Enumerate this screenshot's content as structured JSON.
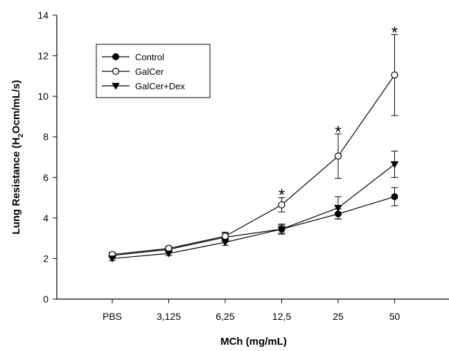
{
  "chart_data": {
    "type": "line",
    "title": "",
    "xlabel": "MCh (mg/mL)",
    "ylabel": "Lung Resistance (H",
    "ylabel_subscript": "2",
    "ylabel_suffix": "Ocm/mL/s)",
    "categories": [
      "PBS",
      "3,125",
      "6,25",
      "12,5",
      "25",
      "50"
    ],
    "ylim": [
      0,
      14
    ],
    "yticks": [
      0,
      2,
      4,
      6,
      8,
      10,
      12,
      14
    ],
    "ytick_labels": [
      "0",
      "2",
      "4",
      "6",
      "8",
      "10",
      "12",
      "14"
    ],
    "grid": false,
    "legend_position": "top-left",
    "series": [
      {
        "name": "Control",
        "marker": "filled-circle",
        "color": "#000000",
        "values": [
          2.15,
          2.45,
          3.05,
          3.45,
          4.2,
          5.05
        ],
        "errors": [
          0.1,
          0.1,
          0.2,
          0.2,
          0.25,
          0.45
        ]
      },
      {
        "name": "GalCer",
        "marker": "open-circle",
        "color": "#000000",
        "values": [
          2.2,
          2.5,
          3.1,
          4.65,
          7.05,
          11.05
        ],
        "errors": [
          0.1,
          0.1,
          0.2,
          0.35,
          1.1,
          2.0
        ]
      },
      {
        "name": "GalCer+Dex",
        "marker": "filled-triangle-down",
        "color": "#000000",
        "values": [
          2.0,
          2.25,
          2.8,
          3.45,
          4.5,
          6.65
        ],
        "errors": [
          0.1,
          0.1,
          0.15,
          0.25,
          0.55,
          0.65
        ]
      }
    ],
    "annotations": [
      {
        "text": "*",
        "category": "12,5",
        "y": 5.35
      },
      {
        "text": "*",
        "category": "25",
        "y": 8.45
      },
      {
        "text": "*",
        "category": "50",
        "y": 13.35
      }
    ]
  }
}
